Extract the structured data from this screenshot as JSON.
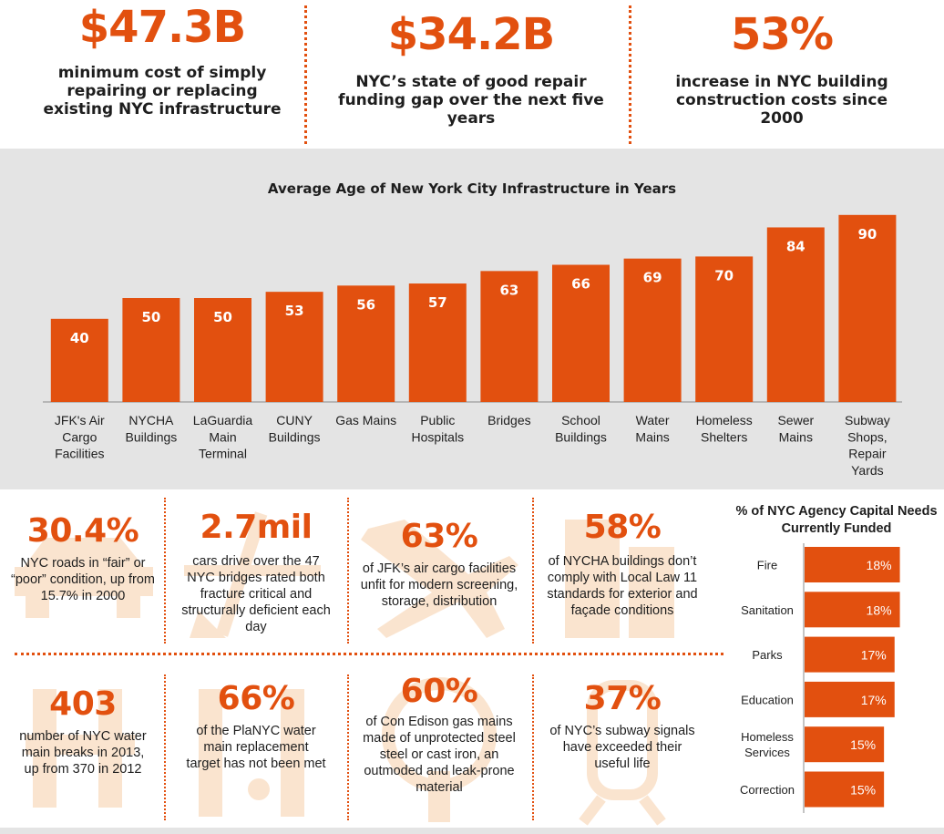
{
  "colors": {
    "accent": "#e2500f",
    "ghost": "#f7cfa8",
    "panel": "#e4e4e4",
    "text": "#1e1e1e"
  },
  "top_stats": [
    {
      "value": "$47.3B",
      "text": "minimum cost of simply repairing or replacing existing NYC infrastructure"
    },
    {
      "value": "$34.2B",
      "text": "NYC’s state of good repair funding gap over the next five years"
    },
    {
      "value": "53%",
      "text": "increase in NYC building construction costs since 2000"
    }
  ],
  "chart_data": [
    {
      "type": "bar",
      "title": "Average Age of New York City Infrastructure in Years",
      "categories": [
        "JFK's Air Cargo Facilities",
        "NYCHA Buildings",
        "LaGuardia Main Terminal",
        "CUNY Buildings",
        "Gas Mains",
        "Public Hospitals",
        "Bridges",
        "School Buildings",
        "Water Mains",
        "Homeless Shelters",
        "Sewer Mains",
        "Subway Shops, Repair Yards"
      ],
      "category_lines": [
        [
          "JFK's Air",
          "Cargo",
          "Facilities"
        ],
        [
          "NYCHA",
          "Buildings"
        ],
        [
          "LaGuardia",
          "Main",
          "Terminal"
        ],
        [
          "CUNY",
          "Buildings"
        ],
        [
          "Gas Mains"
        ],
        [
          "Public",
          "Hospitals"
        ],
        [
          "Bridges"
        ],
        [
          "School",
          "Buildings"
        ],
        [
          "Water",
          "Mains"
        ],
        [
          "Homeless",
          "Shelters"
        ],
        [
          "Sewer",
          "Mains"
        ],
        [
          "Subway",
          "Shops,",
          "Repair",
          "Yards"
        ]
      ],
      "values": [
        40,
        50,
        50,
        53,
        56,
        57,
        63,
        66,
        69,
        70,
        84,
        90
      ],
      "value_labels": [
        "40",
        "50",
        "50",
        "53",
        "56",
        "57",
        "63",
        "66",
        "69",
        "70",
        "84",
        "90"
      ],
      "xlabel": "",
      "ylabel": "",
      "ylim": [
        0,
        100
      ],
      "grid": false,
      "color": "#e2500f"
    },
    {
      "type": "bar",
      "orientation": "horizontal",
      "title": "% of NYC Agency Capital Needs Currently Funded",
      "categories": [
        "Fire",
        "Sanitation",
        "Parks",
        "Education",
        "Homeless Services",
        "Correction"
      ],
      "category_lines": [
        [
          "Fire"
        ],
        [
          "Sanitation"
        ],
        [
          "Parks"
        ],
        [
          "Education"
        ],
        [
          "Homeless",
          "Services"
        ],
        [
          "Correction"
        ]
      ],
      "values": [
        18,
        18,
        17,
        17,
        15,
        15
      ],
      "value_labels": [
        "18%",
        "18%",
        "17%",
        "17%",
        "15%",
        "15%"
      ],
      "xlabel": "",
      "ylabel": "",
      "xlim": [
        0,
        21
      ],
      "grid": false,
      "color": "#e2500f"
    }
  ],
  "facts": [
    {
      "value": "30.4%",
      "text": "NYC roads in “fair” or “poor” condition, up from 15.7% in 2000",
      "icon": "car-icon"
    },
    {
      "value": "2.7mil",
      "text": "cars drive over the 47 NYC bridges rated both fracture critical and structurally deficient each day",
      "icon": "road-icon"
    },
    {
      "value": "63%",
      "text": "of JFK’s air cargo facilities unfit for modern screening, storage, distribution",
      "icon": "airplane-icon"
    },
    {
      "value": "58%",
      "text": "of NYCHA buildings don’t comply with Local Law 11 standards for exterior and façade conditions",
      "icon": "building-icon"
    },
    {
      "value": "403",
      "text": "number of NYC water main breaks in 2013, up from 370 in 2012",
      "icon": "pipe-icon"
    },
    {
      "value": "66%",
      "text": "of the PlaNYC water main replacement target has not been met",
      "icon": "faucet-icon"
    },
    {
      "value": "60%",
      "text": "of Con Edison gas mains made of unprotected steel steel or cast iron, an outmoded and leak-prone material",
      "icon": "gas-valve-icon"
    },
    {
      "value": "37%",
      "text": "of NYC’s subway signals have exceeded their useful life",
      "icon": "train-icon"
    }
  ]
}
